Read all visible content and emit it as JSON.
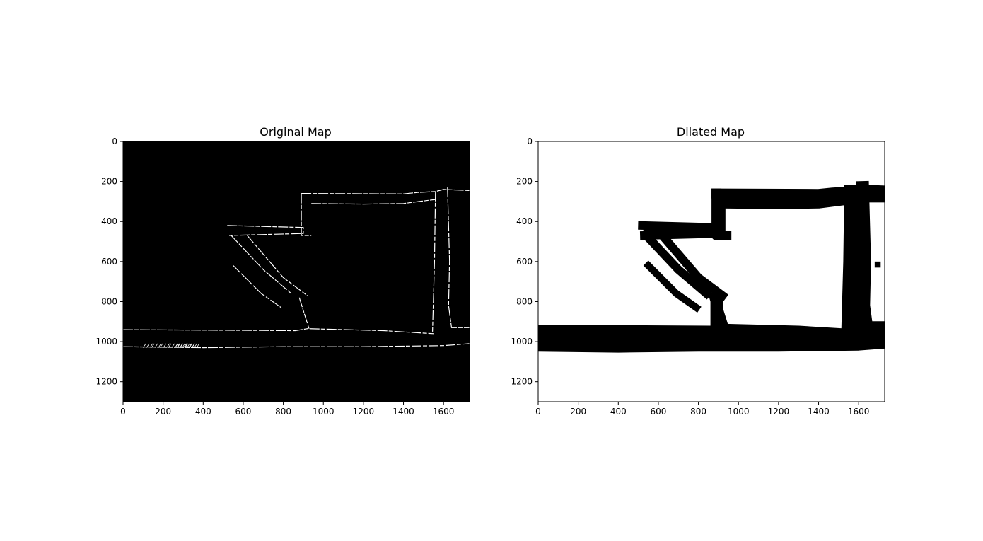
{
  "colors": {
    "background": "#ffffff",
    "occupied": "#000000",
    "free_original": "#000000",
    "edge_original": "#ffffff",
    "free_dilated": "#ffffff"
  },
  "chart_data": [
    {
      "type": "heatmap",
      "title": "Original Map",
      "xlabel": "",
      "ylabel": "",
      "xlim": [
        0,
        1730
      ],
      "ylim": [
        1300,
        0
      ],
      "xticks": [
        0,
        200,
        400,
        600,
        800,
        1000,
        1200,
        1400,
        1600
      ],
      "yticks": [
        0,
        200,
        400,
        600,
        800,
        1000,
        1200
      ],
      "description_of_values": "binary image: white pixels are thin obstacle outlines on black background",
      "walls": [
        {
          "name": "top-corridor-upper-edge",
          "points": [
            [
              890,
              260
            ],
            [
              1400,
              262
            ],
            [
              1470,
              255
            ],
            [
              1560,
              250
            ],
            [
              1600,
              240
            ],
            [
              1730,
              245
            ]
          ]
        },
        {
          "name": "top-corridor-lower-edge",
          "points": [
            [
              940,
              310
            ],
            [
              1200,
              313
            ],
            [
              1400,
              310
            ],
            [
              1480,
              300
            ],
            [
              1560,
              290
            ]
          ]
        },
        {
          "name": "right-wall-left",
          "points": [
            [
              1560,
              250
            ],
            [
              1555,
              600
            ],
            [
              1545,
              950
            ]
          ]
        },
        {
          "name": "right-wall-right",
          "points": [
            [
              1620,
              230
            ],
            [
              1630,
              600
            ],
            [
              1625,
              820
            ],
            [
              1640,
              930
            ],
            [
              1730,
              930
            ]
          ]
        },
        {
          "name": "left-step-vertical",
          "points": [
            [
              890,
              260
            ],
            [
              890,
              470
            ],
            [
              940,
              470
            ]
          ]
        },
        {
          "name": "upper-hall",
          "points": [
            [
              520,
              420
            ],
            [
              900,
              430
            ],
            [
              900,
              460
            ],
            [
              530,
              470
            ]
          ]
        },
        {
          "name": "diagonal-a",
          "points": [
            [
              540,
              470
            ],
            [
              700,
              640
            ],
            [
              840,
              760
            ]
          ]
        },
        {
          "name": "diagonal-b",
          "points": [
            [
              620,
              470
            ],
            [
              800,
              680
            ],
            [
              920,
              770
            ]
          ]
        },
        {
          "name": "diagonal-c",
          "points": [
            [
              550,
              620
            ],
            [
              690,
              760
            ],
            [
              790,
              830
            ]
          ]
        },
        {
          "name": "bottom-corridor-upper-edge",
          "points": [
            [
              0,
              940
            ],
            [
              860,
              945
            ],
            [
              920,
              935
            ],
            [
              1300,
              945
            ],
            [
              1550,
              960
            ]
          ]
        },
        {
          "name": "bottom-corridor-lower-edge",
          "points": [
            [
              0,
              1025
            ],
            [
              400,
              1030
            ],
            [
              800,
              1025
            ],
            [
              1200,
              1025
            ],
            [
              1600,
              1020
            ],
            [
              1730,
              1010
            ]
          ]
        },
        {
          "name": "lower-leg",
          "points": [
            [
              880,
              780
            ],
            [
              930,
              940
            ]
          ]
        }
      ]
    },
    {
      "type": "heatmap",
      "title": "Dilated Map",
      "xlabel": "",
      "ylabel": "",
      "xlim": [
        0,
        1730
      ],
      "ylim": [
        1300,
        0
      ],
      "xticks": [
        0,
        200,
        400,
        600,
        800,
        1000,
        1200,
        1400,
        1600
      ],
      "yticks": [
        0,
        200,
        400,
        600,
        800,
        1000,
        1200
      ],
      "description_of_values": "binary image: dilated obstacles in black on white background"
    }
  ]
}
